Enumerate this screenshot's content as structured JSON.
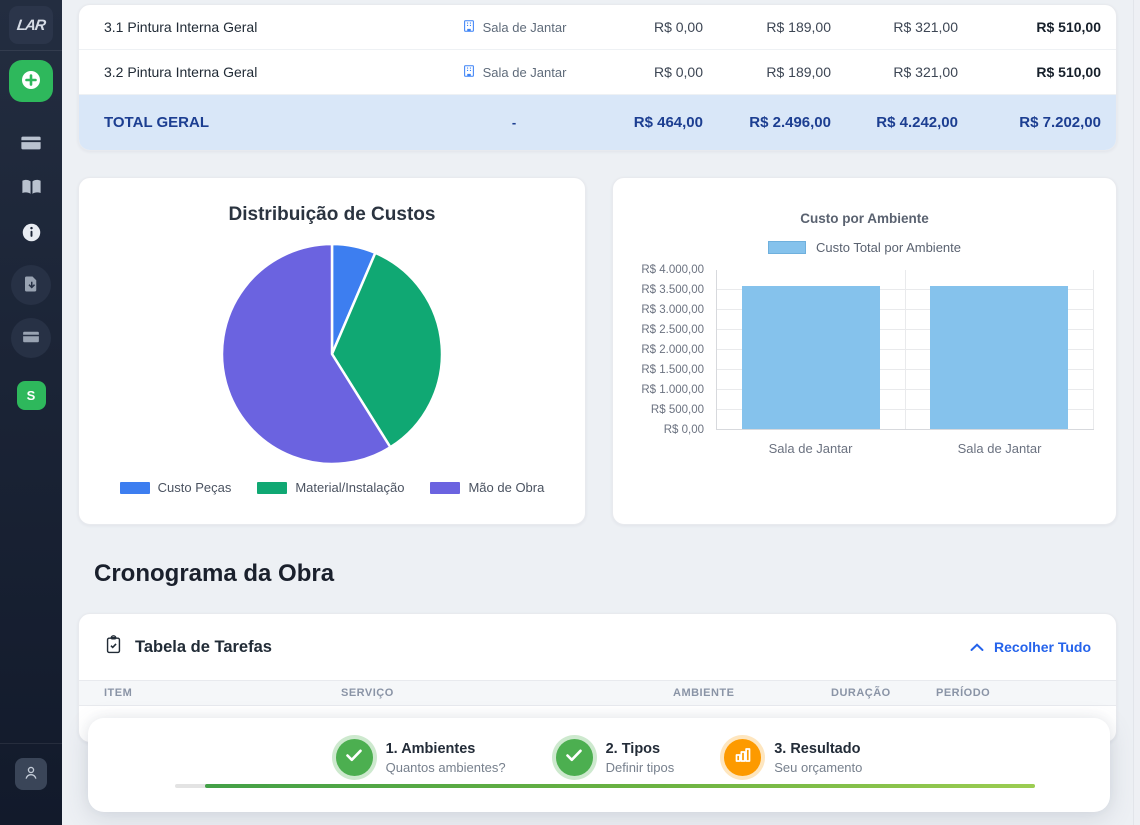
{
  "sidebar": {
    "logo_text": "LAR",
    "avatar_initial": "S"
  },
  "summary_table": {
    "rows": [
      {
        "item": "3.1 Pintura Interna Geral",
        "ambiente": "Sala de Jantar",
        "custo_pecas": "R$ 0,00",
        "material": "R$ 189,00",
        "mao_de_obra": "R$ 321,00",
        "total": "R$ 510,00"
      },
      {
        "item": "3.2 Pintura Interna Geral",
        "ambiente": "Sala de Jantar",
        "custo_pecas": "R$ 0,00",
        "material": "R$ 189,00",
        "mao_de_obra": "R$ 321,00",
        "total": "R$ 510,00"
      }
    ],
    "total_row": {
      "label": "TOTAL GERAL",
      "ambiente": "-",
      "custo_pecas": "R$ 464,00",
      "material": "R$ 2.496,00",
      "mao_de_obra": "R$ 4.242,00",
      "total": "R$ 7.202,00"
    }
  },
  "chart_data": [
    {
      "type": "pie",
      "title": "Distribuição de Custos",
      "labels": [
        "Custo Peças",
        "Material/Instalação",
        "Mão de Obra"
      ],
      "values": [
        464,
        2496,
        4242
      ],
      "colors": [
        "#3d7ef0",
        "#10a873",
        "#6b63e0"
      ],
      "legend_position": "bottom"
    },
    {
      "type": "bar",
      "title": "Custo por Ambiente",
      "legend": "Custo Total por Ambiente",
      "categories": [
        "Sala de Jantar",
        "Sala de Jantar"
      ],
      "values": [
        3601,
        3601
      ],
      "bar_color": "#85c2ec",
      "ylim": [
        0,
        4000
      ],
      "ytick_step": 500,
      "ytick_labels": [
        "R$ 4.000,00",
        "R$ 3.500,00",
        "R$ 3.000,00",
        "R$ 2.500,00",
        "R$ 2.000,00",
        "R$ 1.500,00",
        "R$ 1.000,00",
        "R$ 500,00",
        "R$ 0,00"
      ],
      "grid": true
    }
  ],
  "cronograma": {
    "title": "Cronograma da Obra"
  },
  "tarefas": {
    "title": "Tabela de Tarefas",
    "collapse_label": "Recolher Tudo",
    "columns": [
      "ITEM",
      "SERVIÇO",
      "AMBIENTE",
      "DURAÇÃO",
      "PERÍODO"
    ]
  },
  "stepper": {
    "steps": [
      {
        "title": "1. Ambientes",
        "subtitle": "Quantos ambientes?",
        "state": "done"
      },
      {
        "title": "2. Tipos",
        "subtitle": "Definir tipos",
        "state": "done"
      },
      {
        "title": "3. Resultado",
        "subtitle": "Seu orçamento",
        "state": "current"
      }
    ],
    "progress_percent": 96.5,
    "colors": {
      "done": "#4caf50",
      "current": "#fd9a00",
      "accent_green": "#2eb85c",
      "link_blue": "#2563eb"
    }
  }
}
